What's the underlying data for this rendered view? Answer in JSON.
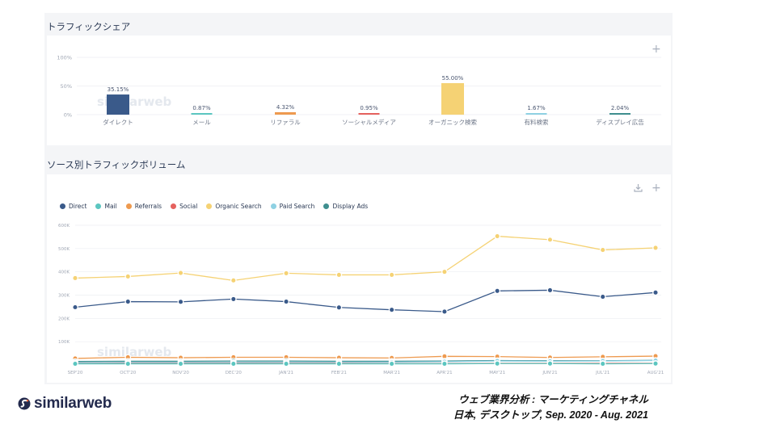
{
  "section1": {
    "title": "トラフィックシェア"
  },
  "section2": {
    "title": "ソース別トラフィックボリューム"
  },
  "colors": {
    "Direct": "#3a5a8a",
    "Mail": "#5cc6c0",
    "Referrals": "#ee9a4f",
    "Social": "#e5625e",
    "Organic Search": "#f5d274",
    "Paid Search": "#8fd1e3",
    "Display Ads": "#3f8f8f"
  },
  "chart_data": [
    {
      "type": "bar",
      "title": "",
      "categories": [
        "ダイレクト",
        "メール",
        "リファラル",
        "ソーシャルメディア",
        "オーガニック検索",
        "有料検索",
        "ディスプレイ広告"
      ],
      "values": [
        35.15,
        0.87,
        4.32,
        0.95,
        55.0,
        1.67,
        2.04
      ],
      "data_labels": [
        "35.15%",
        "0.87%",
        "4.32%",
        "0.95%",
        "55.00%",
        "1.67%",
        "2.04%"
      ],
      "y_ticks": [
        "0%",
        "50%",
        "100%"
      ],
      "ylim": [
        0,
        100
      ],
      "grid": true
    },
    {
      "type": "line",
      "title": "",
      "categories": [
        "SEP'20",
        "OCT'20",
        "NOV'20",
        "DEC'20",
        "JAN'21",
        "FEB'21",
        "MAR'21",
        "APR'21",
        "MAY'21",
        "JUN'21",
        "JUL'21",
        "AUG'21"
      ],
      "y_ticks": [
        "100K",
        "200K",
        "300K",
        "400K",
        "500K",
        "600K"
      ],
      "ylim": [
        0,
        600000
      ],
      "legend_position": "top-left",
      "grid": true,
      "series": [
        {
          "name": "Direct",
          "values": [
            248000,
            272000,
            271000,
            283000,
            272000,
            247000,
            237000,
            229000,
            318000,
            321000,
            293000,
            311000
          ]
        },
        {
          "name": "Mail",
          "values": [
            5000,
            5000,
            5000,
            5000,
            5000,
            5000,
            5000,
            5000,
            6000,
            6000,
            5000,
            6000
          ]
        },
        {
          "name": "Referrals",
          "values": [
            28000,
            33000,
            31000,
            33000,
            33000,
            31000,
            30000,
            37000,
            36000,
            32000,
            35000,
            38000
          ]
        },
        {
          "name": "Social",
          "values": [
            6000,
            7000,
            7000,
            7000,
            7000,
            7000,
            6000,
            6000,
            7000,
            7000,
            7000,
            7000
          ]
        },
        {
          "name": "Organic Search",
          "values": [
            373000,
            380000,
            395000,
            363000,
            394000,
            387000,
            387000,
            400000,
            553000,
            538000,
            494000,
            503000
          ]
        },
        {
          "name": "Paid Search",
          "values": [
            10000,
            11000,
            11000,
            11000,
            12000,
            12000,
            12000,
            14000,
            17000,
            16000,
            17000,
            19000
          ]
        },
        {
          "name": "Display Ads",
          "values": [
            15000,
            16000,
            16000,
            17000,
            17000,
            16000,
            16000,
            17000,
            19000,
            18000,
            18000,
            20000
          ]
        }
      ]
    }
  ],
  "watermark": {
    "text": "similarweb"
  },
  "logo": {
    "text": "similarweb"
  },
  "footer": {
    "line1": "ウェブ業界分析 : マーケティングチャネル",
    "line2": "日本, デスクトップ, Sep. 2020 - Aug. 2021"
  }
}
